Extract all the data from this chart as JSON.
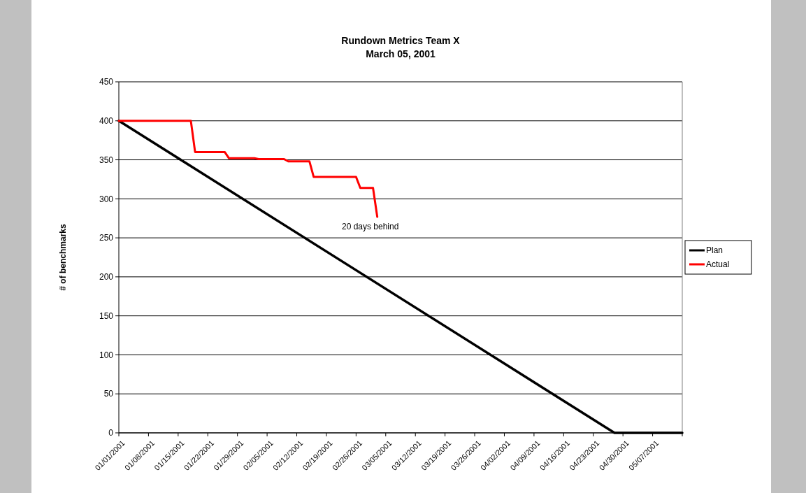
{
  "chart_data": {
    "type": "line",
    "title": "Rundown Metrics Team X",
    "subtitle": "March 05, 2001",
    "ylabel": "# of benchmarks",
    "xlim": [
      "2001-01-01",
      "2001-05-14"
    ],
    "xticks": [
      {
        "value": "2001-01-01",
        "label": "01/01/2001"
      },
      {
        "value": "2001-01-08",
        "label": "01/08/2001"
      },
      {
        "value": "2001-01-15",
        "label": "01/15/2001"
      },
      {
        "value": "2001-01-22",
        "label": "01/22/2001"
      },
      {
        "value": "2001-01-29",
        "label": "01/29/2001"
      },
      {
        "value": "2001-02-05",
        "label": "02/05/2001"
      },
      {
        "value": "2001-02-12",
        "label": "02/12/2001"
      },
      {
        "value": "2001-02-19",
        "label": "02/19/2001"
      },
      {
        "value": "2001-02-26",
        "label": "02/26/2001"
      },
      {
        "value": "2001-03-05",
        "label": "03/05/2001"
      },
      {
        "value": "2001-03-12",
        "label": "03/12/2001"
      },
      {
        "value": "2001-03-19",
        "label": "03/19/2001"
      },
      {
        "value": "2001-03-26",
        "label": "03/26/2001"
      },
      {
        "value": "2001-04-02",
        "label": "04/02/2001"
      },
      {
        "value": "2001-04-09",
        "label": "04/09/2001"
      },
      {
        "value": "2001-04-16",
        "label": "04/16/2001"
      },
      {
        "value": "2001-04-23",
        "label": "04/23/2001"
      },
      {
        "value": "2001-04-30",
        "label": "04/30/2001"
      },
      {
        "value": "2001-05-07",
        "label": "05/07/2001"
      },
      {
        "value": "2001-05-14",
        "label": null
      }
    ],
    "ylim": [
      0,
      450
    ],
    "yticks": [
      0,
      50,
      100,
      150,
      200,
      250,
      300,
      350,
      400,
      450
    ],
    "grid": "y",
    "legend": "right",
    "series": [
      {
        "name": "Plan",
        "color": "#000000",
        "x": [
          "2001-01-01",
          "2001-04-28",
          "2001-05-14"
        ],
        "values": [
          400,
          0,
          0
        ]
      },
      {
        "name": "Actual",
        "color": "#ff0000",
        "x": [
          "2001-01-01",
          "2001-01-18",
          "2001-01-19",
          "2001-01-26",
          "2001-01-27",
          "2001-02-02",
          "2001-02-03",
          "2001-02-09",
          "2001-02-10",
          "2001-02-15",
          "2001-02-16",
          "2001-02-26",
          "2001-02-27",
          "2001-03-02",
          "2001-03-03"
        ],
        "values": [
          400,
          400,
          360,
          360,
          352,
          352,
          351,
          351,
          348,
          348,
          328,
          328,
          314,
          314,
          277
        ]
      }
    ],
    "annotations": [
      {
        "text": "20 days behind",
        "x": "2001-03-03",
        "y": 277
      }
    ]
  }
}
